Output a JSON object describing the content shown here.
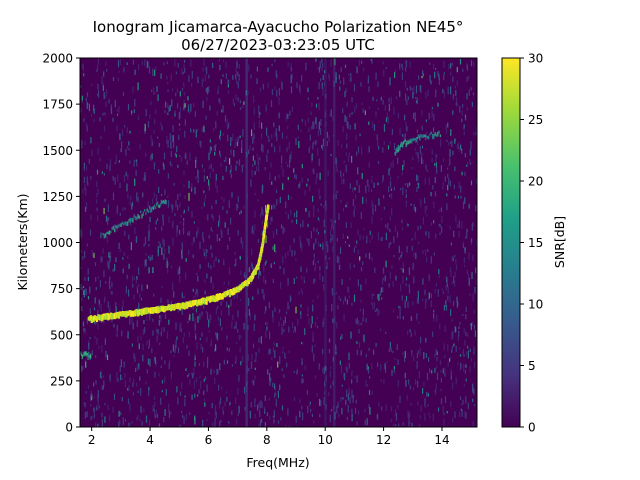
{
  "chart_data": {
    "type": "heatmap",
    "title": "Ionogram Jicamarca-Ayacucho Polarization NE45°",
    "subtitle": "06/27/2023-03:23:05 UTC",
    "xlabel": "Freq(MHz)",
    "ylabel": "Kilometers(Km)",
    "xlim": [
      1.6,
      15.2
    ],
    "ylim": [
      0,
      2000
    ],
    "xticks": [
      "2",
      "4",
      "6",
      "8",
      "10",
      "12",
      "14"
    ],
    "yticks": [
      "0",
      "250",
      "500",
      "750",
      "1000",
      "1250",
      "1500",
      "1750",
      "2000"
    ],
    "colorbar": {
      "label": "SNR[dB]",
      "range": [
        0,
        30
      ],
      "ticks": [
        "0",
        "5",
        "10",
        "15",
        "20",
        "25",
        "30"
      ],
      "colormap": "viridis"
    },
    "series": [
      {
        "trace": [
          {
            "x": 1.9,
            "y": 585
          },
          {
            "x": 2.5,
            "y": 598
          },
          {
            "x": 3.0,
            "y": 608
          },
          {
            "x": 3.5,
            "y": 620
          },
          {
            "x": 4.0,
            "y": 632
          },
          {
            "x": 4.5,
            "y": 642
          },
          {
            "x": 5.0,
            "y": 655
          },
          {
            "x": 5.5,
            "y": 670
          },
          {
            "x": 6.0,
            "y": 690
          },
          {
            "x": 6.5,
            "y": 712
          },
          {
            "x": 7.0,
            "y": 745
          },
          {
            "x": 7.4,
            "y": 790
          },
          {
            "x": 7.7,
            "y": 870
          },
          {
            "x": 7.85,
            "y": 980
          },
          {
            "x": 7.95,
            "y": 1100
          },
          {
            "x": 8.05,
            "y": 1200
          }
        ]
      },
      {
        "trace": [
          {
            "x": 1.6,
            "y": 395
          },
          {
            "x": 2.0,
            "y": 388
          }
        ]
      },
      {
        "trace": [
          {
            "x": 2.4,
            "y": 1045
          },
          {
            "x": 3.2,
            "y": 1110
          },
          {
            "x": 4.0,
            "y": 1180
          },
          {
            "x": 4.6,
            "y": 1230
          }
        ]
      },
      {
        "trace": [
          {
            "x": 12.4,
            "y": 1490
          },
          {
            "x": 12.7,
            "y": 1540
          },
          {
            "x": 13.2,
            "y": 1570
          },
          {
            "x": 14.0,
            "y": 1590
          }
        ]
      }
    ]
  }
}
